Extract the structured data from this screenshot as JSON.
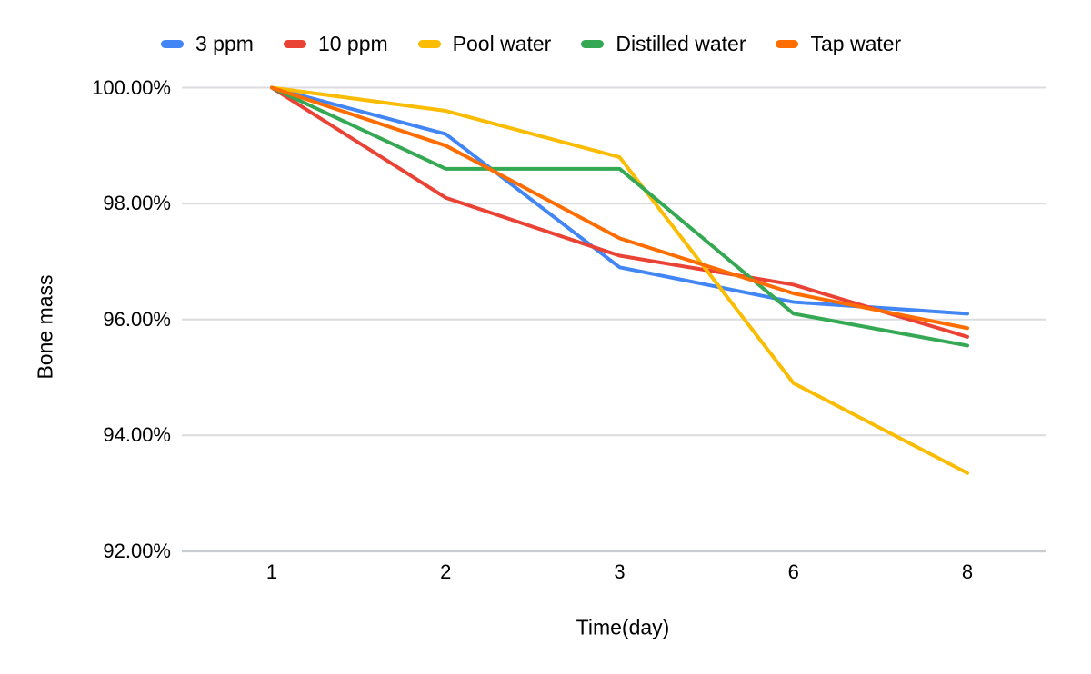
{
  "chart_data": {
    "type": "line",
    "title": "",
    "xlabel": "Time(day)",
    "ylabel": "Bone mass",
    "categories": [
      "1",
      "2",
      "3",
      "6",
      "8"
    ],
    "x_values": [
      1,
      2,
      3,
      6,
      8
    ],
    "y_ticks": [
      {
        "label": "100.00%",
        "value": 100
      },
      {
        "label": "98.00%",
        "value": 98
      },
      {
        "label": "96.00%",
        "value": 96
      },
      {
        "label": "94.00%",
        "value": 94
      },
      {
        "label": "92.00%",
        "value": 92
      }
    ],
    "ylim": [
      92,
      100
    ],
    "grid": "horizontal",
    "legend_position": "top",
    "series": [
      {
        "name": "3 ppm",
        "color": "#4285F4",
        "values": [
          100,
          99.2,
          96.9,
          96.3,
          96.1
        ]
      },
      {
        "name": "10 ppm",
        "color": "#EA4335",
        "values": [
          100,
          98.1,
          97.1,
          96.6,
          95.7
        ]
      },
      {
        "name": "Pool water",
        "color": "#FBBC04",
        "values": [
          100,
          99.6,
          98.8,
          94.9,
          93.35
        ]
      },
      {
        "name": "Distilled water",
        "color": "#34A853",
        "values": [
          100,
          98.6,
          98.6,
          96.1,
          95.55
        ]
      },
      {
        "name": "Tap water",
        "color": "#FF6D01",
        "values": [
          100,
          99.0,
          97.4,
          96.45,
          95.85
        ]
      }
    ]
  },
  "colors": {
    "background": "#FFFFFF",
    "gridline": "#DADCE0",
    "baseline": "#C9CCD1",
    "axis_text": "#000000"
  }
}
